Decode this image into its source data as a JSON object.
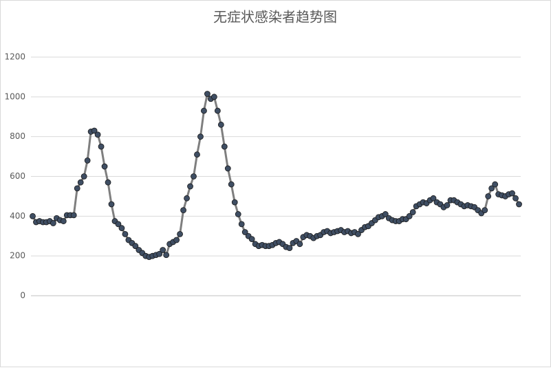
{
  "chart_data": {
    "type": "line",
    "title": "无症状感染者趋势图",
    "categories": [
      null,
      null,
      null,
      null,
      null,
      null,
      null,
      null,
      null,
      null,
      null,
      null,
      null,
      null,
      null,
      null,
      null,
      null,
      null,
      null,
      null,
      null,
      null,
      null,
      null,
      null,
      null,
      null,
      null,
      null,
      null,
      null,
      null,
      null,
      null,
      null,
      null,
      null,
      null,
      null,
      null,
      null,
      null,
      null,
      null,
      null,
      null,
      null,
      null,
      null,
      null,
      null,
      null,
      null,
      null,
      null,
      null,
      null,
      null,
      null,
      null,
      null,
      null,
      null,
      null,
      null,
      null,
      null,
      null,
      null,
      null,
      null,
      null,
      null,
      null,
      null,
      null,
      null,
      null,
      null,
      null,
      null,
      null,
      null,
      null,
      null,
      null,
      null,
      null,
      null,
      null,
      null,
      null,
      null,
      null,
      null,
      null,
      null,
      null,
      null,
      null,
      null,
      null,
      null,
      null,
      null,
      null,
      null,
      null,
      null,
      null,
      null,
      null,
      null,
      null,
      null,
      null,
      null,
      null,
      null,
      null,
      null,
      null,
      null,
      null,
      null,
      null,
      null,
      null,
      null,
      null,
      null,
      null,
      null,
      null,
      null,
      null,
      null,
      null,
      null,
      null,
      null,
      null
    ],
    "series": [
      {
        "color": "#3f4e63",
        "values": [
          400,
          370,
          375,
          370,
          370,
          375,
          365,
          390,
          380,
          375,
          405,
          405,
          405,
          540,
          570,
          600,
          680,
          825,
          830,
          810,
          750,
          650,
          570,
          460,
          375,
          360,
          340,
          310,
          280,
          265,
          250,
          230,
          215,
          200,
          195,
          200,
          205,
          210,
          230,
          205,
          260,
          270,
          280,
          310,
          430,
          490,
          550,
          600,
          710,
          800,
          930,
          1015,
          990,
          1000,
          930,
          860,
          750,
          640,
          560,
          470,
          410,
          360,
          320,
          300,
          285,
          260,
          250,
          255,
          250,
          250,
          255,
          265,
          270,
          260,
          245,
          240,
          265,
          275,
          260,
          295,
          305,
          300,
          290,
          300,
          305,
          320,
          325,
          315,
          320,
          325,
          330,
          320,
          325,
          315,
          320,
          310,
          330,
          345,
          350,
          365,
          380,
          395,
          400,
          410,
          390,
          380,
          375,
          375,
          385,
          385,
          400,
          420,
          450,
          460,
          470,
          465,
          480,
          490,
          470,
          460,
          445,
          455,
          480,
          480,
          470,
          460,
          450,
          455,
          450,
          445,
          430,
          415,
          430,
          500,
          540,
          560,
          510,
          505,
          500,
          510,
          515,
          490,
          460
        ]
      }
    ],
    "ylim": [
      0,
      1200
    ],
    "yticks": [
      0,
      200,
      400,
      600,
      800,
      1000,
      1200
    ],
    "grid": true
  }
}
